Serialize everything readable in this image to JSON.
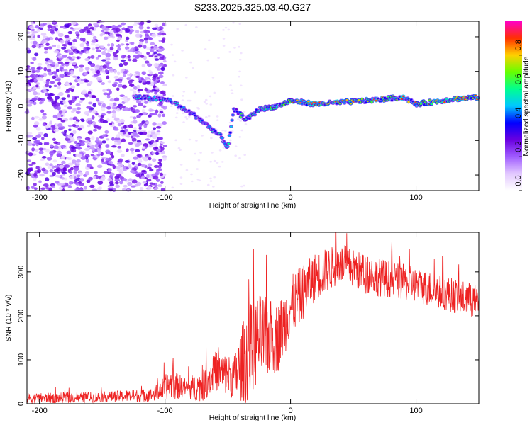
{
  "title": "S233.2025.325.03.40.G27",
  "colors": {
    "snr_line": "#ee2222",
    "axis": "#000000",
    "colormap": [
      "#ffffff",
      "#e2c8ff",
      "#a05cff",
      "#6a00e0",
      "#0000ff",
      "#00c8ff",
      "#00ff90",
      "#66ff00",
      "#ffd000",
      "#ff3000",
      "#ff00c8"
    ]
  },
  "chart_data": [
    {
      "type": "heatmap",
      "name": "spectrogram",
      "xlabel": "Height of straight line (km)",
      "ylabel": "Frequency (Hz)",
      "xlim": [
        -210,
        150
      ],
      "ylim": [
        -24.5,
        24.5
      ],
      "xticks": [
        -200,
        -100,
        0,
        100
      ],
      "yticks": [
        -20,
        -10,
        0,
        10,
        20
      ],
      "colorbar": {
        "label": "Normalized spectral amplitude",
        "range": [
          0,
          1
        ],
        "ticks": [
          "0.0",
          "0.2",
          "0.4",
          "0.6",
          "0.8"
        ]
      },
      "ridge": [
        {
          "x": -120,
          "f": 2.5
        },
        {
          "x": -105,
          "f": 2.0
        },
        {
          "x": -95,
          "f": 1.5
        },
        {
          "x": -85,
          "f": -1.0
        },
        {
          "x": -75,
          "f": -3.0
        },
        {
          "x": -65,
          "f": -6.0
        },
        {
          "x": -55,
          "f": -9.0
        },
        {
          "x": -50,
          "f": -12.0
        },
        {
          "x": -45,
          "f": -1.0
        },
        {
          "x": -35,
          "f": -4.0
        },
        {
          "x": -25,
          "f": -1.0
        },
        {
          "x": -10,
          "f": 0.0
        },
        {
          "x": 0,
          "f": 1.5
        },
        {
          "x": 20,
          "f": 0.5
        },
        {
          "x": 60,
          "f": 1.5
        },
        {
          "x": 90,
          "f": 2.5
        },
        {
          "x": 100,
          "f": 0.5
        },
        {
          "x": 130,
          "f": 2.0
        },
        {
          "x": 150,
          "f": 2.5
        }
      ]
    },
    {
      "type": "line",
      "name": "snr",
      "xlabel": "Height of straight line (km)",
      "ylabel": "SNR (10 * v/v)",
      "xlim": [
        -210,
        150
      ],
      "ylim": [
        0,
        390
      ],
      "xticks": [
        -200,
        -100,
        0,
        100
      ],
      "yticks": [
        0,
        100,
        200,
        300
      ],
      "envelope": [
        {
          "x": -210,
          "mean": 12,
          "spread": 12
        },
        {
          "x": -150,
          "mean": 15,
          "spread": 12
        },
        {
          "x": -110,
          "mean": 20,
          "spread": 15
        },
        {
          "x": -95,
          "mean": 45,
          "spread": 35
        },
        {
          "x": -85,
          "mean": 35,
          "spread": 25
        },
        {
          "x": -70,
          "mean": 40,
          "spread": 35
        },
        {
          "x": -60,
          "mean": 75,
          "spread": 45
        },
        {
          "x": -45,
          "mean": 60,
          "spread": 50
        },
        {
          "x": -35,
          "mean": 110,
          "spread": 110
        },
        {
          "x": -25,
          "mean": 150,
          "spread": 100
        },
        {
          "x": -10,
          "mean": 150,
          "spread": 80
        },
        {
          "x": 0,
          "mean": 220,
          "spread": 70
        },
        {
          "x": 20,
          "mean": 290,
          "spread": 55
        },
        {
          "x": 40,
          "mean": 320,
          "spread": 45
        },
        {
          "x": 60,
          "mean": 295,
          "spread": 45
        },
        {
          "x": 100,
          "mean": 270,
          "spread": 40
        },
        {
          "x": 150,
          "mean": 230,
          "spread": 40
        }
      ]
    }
  ]
}
